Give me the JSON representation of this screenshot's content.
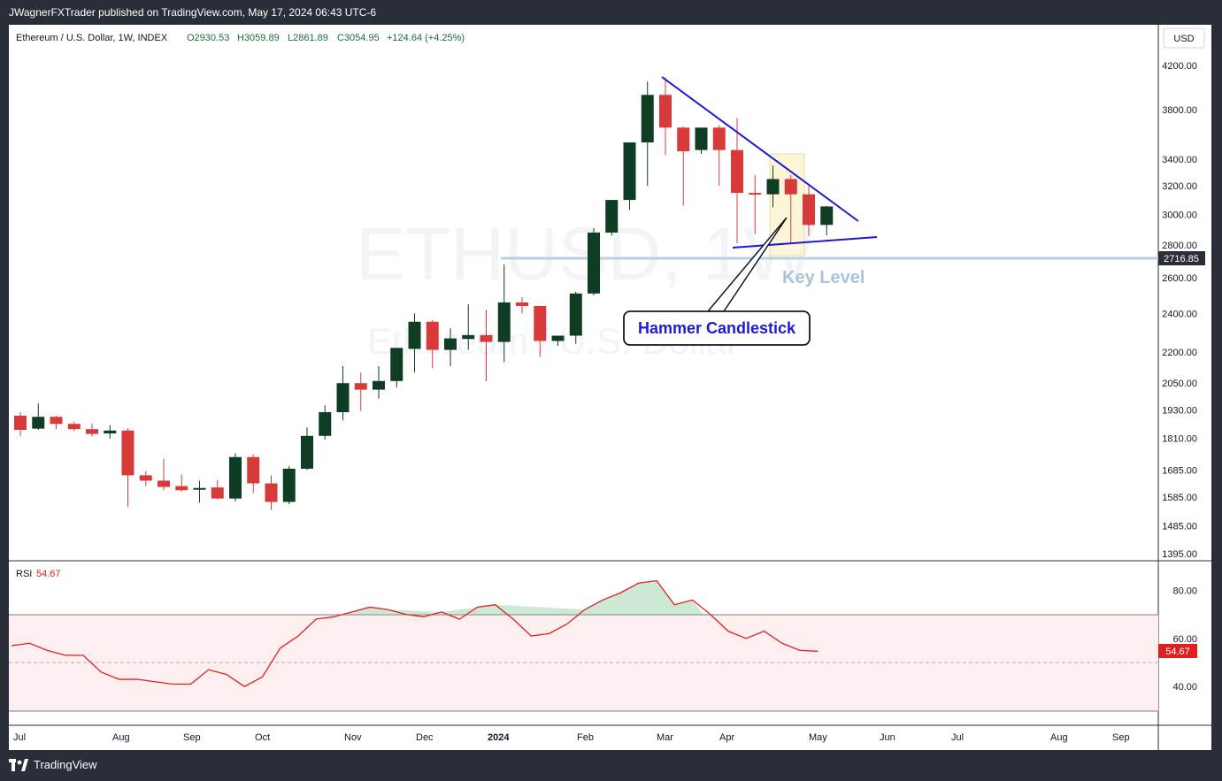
{
  "header": {
    "published": "JWagnerFXTrader published on TradingView.com, May 17, 2024 06:43 UTC-6"
  },
  "legend": {
    "symbol": "Ethereum / U.S. Dollar, 1W, INDEX",
    "open": "O2930.53",
    "high": "H3059.89",
    "low": "L2861.89",
    "close": "C3054.95",
    "change": "+124.64 (+4.25%)"
  },
  "currency": "USD",
  "watermark": {
    "symbol": "ETHUSD, 1W",
    "name": "Ethereum / U.S. Dollar"
  },
  "key_level": {
    "value": "2716.85",
    "label": "Key Level"
  },
  "callout": "Hammer Candlestick",
  "rsi": {
    "label": "RSI",
    "value": "54.67"
  },
  "footer": {
    "brand": "TradingView"
  },
  "colors": {
    "up": "#0e3d24",
    "down": "#d83a3a",
    "trend": "#1a1ad8",
    "key_level": "#b9d0e3",
    "rsi_line": "#e02020",
    "rsi_band": "#fdeff0"
  },
  "chart_data": [
    {
      "type": "candlestick",
      "price_axis": [
        "4200.00",
        "3800.00",
        "3400.00",
        "3200.00",
        "3000.00",
        "2800.00",
        "2600.00",
        "2400.00",
        "2200.00",
        "2050.00",
        "1930.00",
        "1810.00",
        "1685.00",
        "1585.00",
        "1485.00",
        "1395.00"
      ],
      "time_axis": [
        "Jul",
        "Aug",
        "Sep",
        "Oct",
        "Nov",
        "Dec",
        "2024",
        "Feb",
        "Mar",
        "Apr",
        "May",
        "Jun",
        "Jul",
        "Aug",
        "Sep"
      ],
      "candles": [
        {
          "o": 1905,
          "h": 1920,
          "l": 1820,
          "c": 1845
        },
        {
          "o": 1850,
          "h": 1958,
          "l": 1845,
          "c": 1900
        },
        {
          "o": 1900,
          "h": 1905,
          "l": 1848,
          "c": 1870
        },
        {
          "o": 1870,
          "h": 1880,
          "l": 1840,
          "c": 1848
        },
        {
          "o": 1848,
          "h": 1872,
          "l": 1818,
          "c": 1828
        },
        {
          "o": 1830,
          "h": 1865,
          "l": 1808,
          "c": 1842
        },
        {
          "o": 1842,
          "h": 1852,
          "l": 1550,
          "c": 1665
        },
        {
          "o": 1665,
          "h": 1680,
          "l": 1625,
          "c": 1645
        },
        {
          "o": 1645,
          "h": 1728,
          "l": 1610,
          "c": 1622
        },
        {
          "o": 1625,
          "h": 1668,
          "l": 1605,
          "c": 1610
        },
        {
          "o": 1612,
          "h": 1645,
          "l": 1565,
          "c": 1618
        },
        {
          "o": 1620,
          "h": 1648,
          "l": 1578,
          "c": 1580
        },
        {
          "o": 1580,
          "h": 1750,
          "l": 1570,
          "c": 1735
        },
        {
          "o": 1735,
          "h": 1745,
          "l": 1600,
          "c": 1635
        },
        {
          "o": 1635,
          "h": 1665,
          "l": 1540,
          "c": 1568
        },
        {
          "o": 1568,
          "h": 1700,
          "l": 1560,
          "c": 1690
        },
        {
          "o": 1690,
          "h": 1855,
          "l": 1685,
          "c": 1820
        },
        {
          "o": 1820,
          "h": 1950,
          "l": 1805,
          "c": 1920
        },
        {
          "o": 1920,
          "h": 2130,
          "l": 1885,
          "c": 2050
        },
        {
          "o": 2050,
          "h": 2100,
          "l": 1925,
          "c": 2020
        },
        {
          "o": 2020,
          "h": 2130,
          "l": 1980,
          "c": 2060
        },
        {
          "o": 2060,
          "h": 2200,
          "l": 2030,
          "c": 2220
        },
        {
          "o": 2215,
          "h": 2400,
          "l": 2100,
          "c": 2355
        },
        {
          "o": 2355,
          "h": 2365,
          "l": 2120,
          "c": 2210
        },
        {
          "o": 2210,
          "h": 2320,
          "l": 2130,
          "c": 2268
        },
        {
          "o": 2265,
          "h": 2450,
          "l": 2210,
          "c": 2285
        },
        {
          "o": 2285,
          "h": 2420,
          "l": 2060,
          "c": 2250
        },
        {
          "o": 2250,
          "h": 2680,
          "l": 2150,
          "c": 2460
        },
        {
          "o": 2460,
          "h": 2490,
          "l": 2400,
          "c": 2440
        },
        {
          "o": 2440,
          "h": 2440,
          "l": 2175,
          "c": 2255
        },
        {
          "o": 2255,
          "h": 2280,
          "l": 2230,
          "c": 2282
        },
        {
          "o": 2282,
          "h": 2520,
          "l": 2240,
          "c": 2510
        },
        {
          "o": 2510,
          "h": 2910,
          "l": 2500,
          "c": 2880
        },
        {
          "o": 2880,
          "h": 3080,
          "l": 2860,
          "c": 3100
        },
        {
          "o": 3100,
          "h": 3530,
          "l": 3030,
          "c": 3530
        },
        {
          "o": 3530,
          "h": 4050,
          "l": 3200,
          "c": 3930
        },
        {
          "o": 3930,
          "h": 4090,
          "l": 3430,
          "c": 3650
        },
        {
          "o": 3650,
          "h": 3660,
          "l": 3060,
          "c": 3460
        },
        {
          "o": 3470,
          "h": 3650,
          "l": 3440,
          "c": 3650
        },
        {
          "o": 3650,
          "h": 3670,
          "l": 3200,
          "c": 3470
        },
        {
          "o": 3470,
          "h": 3730,
          "l": 2810,
          "c": 3150
        },
        {
          "o": 3150,
          "h": 3280,
          "l": 2870,
          "c": 3140
        },
        {
          "o": 3140,
          "h": 3350,
          "l": 3050,
          "c": 3250
        },
        {
          "o": 3250,
          "h": 3280,
          "l": 2810,
          "c": 3140
        },
        {
          "o": 3140,
          "h": 3200,
          "l": 2860,
          "c": 2930
        },
        {
          "o": 2930.53,
          "h": 3059.89,
          "l": 2861.89,
          "c": 3054.95
        }
      ],
      "rsi_axis": [
        "80.00",
        "60.00",
        "40.00"
      ],
      "rsi_values": [
        57,
        58,
        55,
        53,
        53,
        46,
        43,
        43,
        42,
        41,
        41,
        47,
        45,
        40,
        44,
        56,
        61,
        68,
        69,
        71,
        73,
        72,
        70,
        69,
        71,
        68,
        73,
        74,
        68,
        61,
        62,
        66,
        72,
        76,
        79,
        83,
        84,
        74,
        76,
        70,
        63,
        60,
        63,
        58,
        55,
        54.67
      ]
    }
  ]
}
